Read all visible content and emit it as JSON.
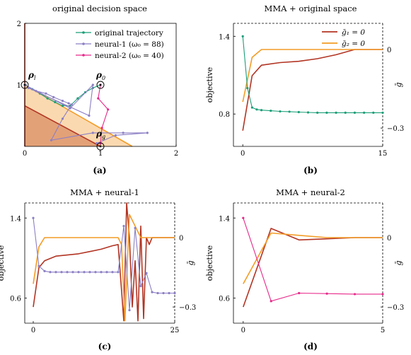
{
  "chart_data": [
    {
      "id": "a",
      "type": "line",
      "title": "original decision space",
      "caption": "(a)",
      "xlim": [
        0,
        2
      ],
      "ylim": [
        0,
        2
      ],
      "xticks": [
        "0",
        "1",
        "2"
      ],
      "yticks": [
        "1",
        "2"
      ],
      "regions": [
        {
          "name": "light",
          "color": "#fbd9b0",
          "polygon": [
            [
              0,
              1
            ],
            [
              1.42,
              0
            ],
            [
              0,
              0
            ]
          ]
        },
        {
          "name": "dark",
          "color": "#e3a177",
          "polygon": [
            [
              0,
              0.66
            ],
            [
              1,
              0
            ],
            [
              0,
              0
            ]
          ]
        }
      ],
      "boundaries": [
        {
          "color": "#f39c26",
          "points": [
            [
              0,
              1
            ],
            [
              1.42,
              0
            ]
          ]
        },
        {
          "color": "#b23423",
          "points": [
            [
              0,
              0.66
            ],
            [
              1,
              0
            ]
          ]
        },
        {
          "color": "#b23423",
          "points": [
            [
              0,
              0
            ],
            [
              0,
              2
            ]
          ]
        }
      ],
      "legend": [
        {
          "label": "original trajectory",
          "color": "#1b9e77"
        },
        {
          "label": "neural-1 (ω₀ = 88)",
          "color": "#8c7fc4"
        },
        {
          "label": "neural-2 (ω₀ = 40)",
          "color": "#e7298a"
        }
      ],
      "series": [
        {
          "color": "#1b9e77",
          "points": [
            [
              0,
              1
            ],
            [
              0.1,
              0.93
            ],
            [
              0.2,
              0.86
            ],
            [
              0.3,
              0.78
            ],
            [
              0.4,
              0.72
            ],
            [
              0.5,
              0.66
            ],
            [
              0.6,
              0.66
            ],
            [
              0.7,
              0.78
            ],
            [
              0.8,
              0.88
            ],
            [
              0.9,
              0.95
            ],
            [
              1,
              1
            ]
          ]
        },
        {
          "color": "#8c7fc4",
          "points": [
            [
              0,
              1
            ],
            [
              0.6,
              0.62
            ],
            [
              0.9,
              1
            ],
            [
              0.85,
              0.5
            ],
            [
              0.05,
              0.95
            ],
            [
              0.15,
              0.9
            ],
            [
              0.28,
              0.86
            ],
            [
              0.38,
              0.8
            ],
            [
              0.5,
              0.74
            ],
            [
              0.58,
              0.7
            ],
            [
              0.62,
              0.68
            ],
            [
              0.5,
              0.45
            ],
            [
              0.35,
              0.1
            ],
            [
              0.9,
              0.22
            ],
            [
              1.3,
              0.22
            ],
            [
              1.62,
              0.22
            ],
            [
              1.2,
              0.18
            ],
            [
              0.95,
              0.05
            ]
          ]
        },
        {
          "color": "#e7298a",
          "points": [
            [
              1,
              1
            ],
            [
              0.97,
              0.78
            ],
            [
              1.1,
              0.6
            ],
            [
              1.02,
              0.3
            ],
            [
              1,
              0.05
            ]
          ]
        }
      ],
      "markers": [
        {
          "label": "ρ_l",
          "at": [
            0,
            1
          ]
        },
        {
          "label": "ρ_0",
          "at": [
            1,
            1
          ]
        },
        {
          "label": "ρ_g",
          "at": [
            1,
            0
          ]
        }
      ]
    },
    {
      "id": "b",
      "type": "line",
      "title": "MMA + original space",
      "caption": "(b)",
      "xlabel": "",
      "ylabel": "objective",
      "y2label": "ḡ",
      "xlim": [
        -1,
        15
      ],
      "ylim": [
        0.55,
        1.5
      ],
      "y2lim": [
        -0.37,
        0.1
      ],
      "xticks": [
        "0",
        "15"
      ],
      "yticks": [
        "0.8",
        "1.4"
      ],
      "y2ticks": [
        "−0.3",
        "0"
      ],
      "legend": [
        {
          "label": "ḡ₁ = 0",
          "color": "#b23423"
        },
        {
          "label": "ḡ₂ = 0",
          "color": "#f39c26"
        }
      ],
      "objective": {
        "color": "#1b9e77",
        "x": [
          0,
          0.5,
          1,
          1.5,
          2,
          3,
          4,
          5,
          6,
          7,
          8,
          9,
          10,
          11,
          12,
          13,
          14,
          15
        ],
        "values": [
          1.4,
          1.0,
          0.85,
          0.835,
          0.83,
          0.825,
          0.82,
          0.818,
          0.815,
          0.812,
          0.81,
          0.81,
          0.81,
          0.81,
          0.81,
          0.81,
          0.81,
          0.81
        ]
      },
      "g1": {
        "color": "#b23423",
        "x": [
          0,
          1,
          2,
          4,
          6,
          8,
          10,
          12,
          13,
          15
        ],
        "values": [
          -0.31,
          -0.1,
          -0.06,
          -0.05,
          -0.045,
          -0.035,
          -0.02,
          0.0,
          0.0,
          0.0
        ]
      },
      "g2": {
        "color": "#f39c26",
        "x": [
          0,
          1,
          2,
          4,
          8,
          12,
          15
        ],
        "values": [
          -0.2,
          -0.03,
          0.0,
          0.0,
          0.0,
          0.0,
          0.0
        ]
      }
    },
    {
      "id": "c",
      "type": "line",
      "title": "MMA + neural-1",
      "caption": "(c)",
      "ylabel": "objective",
      "y2label": "ḡ",
      "xlim": [
        -1.5,
        25
      ],
      "ylim": [
        0.35,
        1.55
      ],
      "y2lim": [
        -0.37,
        0.15
      ],
      "xticks": [
        "0",
        "25"
      ],
      "yticks": [
        "0.6",
        "1.4"
      ],
      "y2ticks": [
        "−0.3",
        "0"
      ],
      "objective": {
        "color": "#8c7fc4",
        "x": [
          0,
          1,
          2,
          3,
          4,
          5,
          6,
          7,
          8,
          9,
          10,
          11,
          12,
          13,
          14,
          15,
          16,
          17,
          18,
          19,
          20,
          21,
          22,
          23,
          24,
          25
        ],
        "values": [
          1.4,
          0.92,
          0.87,
          0.86,
          0.86,
          0.86,
          0.86,
          0.86,
          0.86,
          0.86,
          0.86,
          0.86,
          0.86,
          0.86,
          0.86,
          0.86,
          1.32,
          0.48,
          1.3,
          0.72,
          0.85,
          0.66,
          0.65,
          0.65,
          0.65,
          0.65
        ]
      },
      "g1": {
        "color": "#b23423",
        "x": [
          0,
          1,
          2,
          4,
          6,
          8,
          10,
          12,
          14,
          15,
          16,
          16.5,
          17,
          17.5,
          18,
          18.5,
          19,
          19.5,
          20,
          20.5,
          21,
          22,
          23,
          25
        ],
        "values": [
          -0.3,
          -0.13,
          -0.1,
          -0.08,
          -0.075,
          -0.07,
          -0.06,
          -0.05,
          -0.035,
          -0.03,
          -0.36,
          0.15,
          0.0,
          -0.3,
          -0.1,
          -0.36,
          0.05,
          -0.35,
          0.0,
          -0.03,
          0.0,
          0.0,
          0.0,
          0.0
        ]
      },
      "g2": {
        "color": "#f39c26",
        "x": [
          0,
          1,
          2,
          4,
          8,
          12,
          15,
          15.6,
          16.2,
          17,
          18,
          19,
          20,
          22,
          25
        ],
        "values": [
          -0.2,
          -0.04,
          0.0,
          0.0,
          0.0,
          0.0,
          0.0,
          -0.03,
          -0.36,
          0.1,
          0.05,
          0.0,
          0.0,
          0.0,
          0.0
        ]
      }
    },
    {
      "id": "d",
      "type": "line",
      "title": "MMA + neural-2",
      "caption": "(d)",
      "ylabel": "objective",
      "y2label": "ḡ",
      "xlim": [
        -0.35,
        5
      ],
      "ylim": [
        0.35,
        1.55
      ],
      "y2lim": [
        -0.37,
        0.15
      ],
      "xticks": [
        "0",
        "5"
      ],
      "yticks": [
        "0.6",
        "1.4"
      ],
      "y2ticks": [
        "−0.3",
        "0"
      ],
      "objective": {
        "color": "#e7298a",
        "x": [
          0,
          1,
          2,
          3,
          4,
          5
        ],
        "values": [
          1.4,
          0.57,
          0.65,
          0.645,
          0.64,
          0.64
        ]
      },
      "g1": {
        "color": "#b23423",
        "x": [
          0,
          1,
          2,
          3,
          4,
          5
        ],
        "values": [
          -0.3,
          0.04,
          -0.01,
          -0.005,
          0.0,
          0.0
        ]
      },
      "g2": {
        "color": "#f39c26",
        "x": [
          0,
          1,
          2,
          3,
          4,
          5
        ],
        "values": [
          -0.2,
          0.02,
          0.01,
          0.0,
          0.0,
          0.0
        ]
      }
    }
  ]
}
